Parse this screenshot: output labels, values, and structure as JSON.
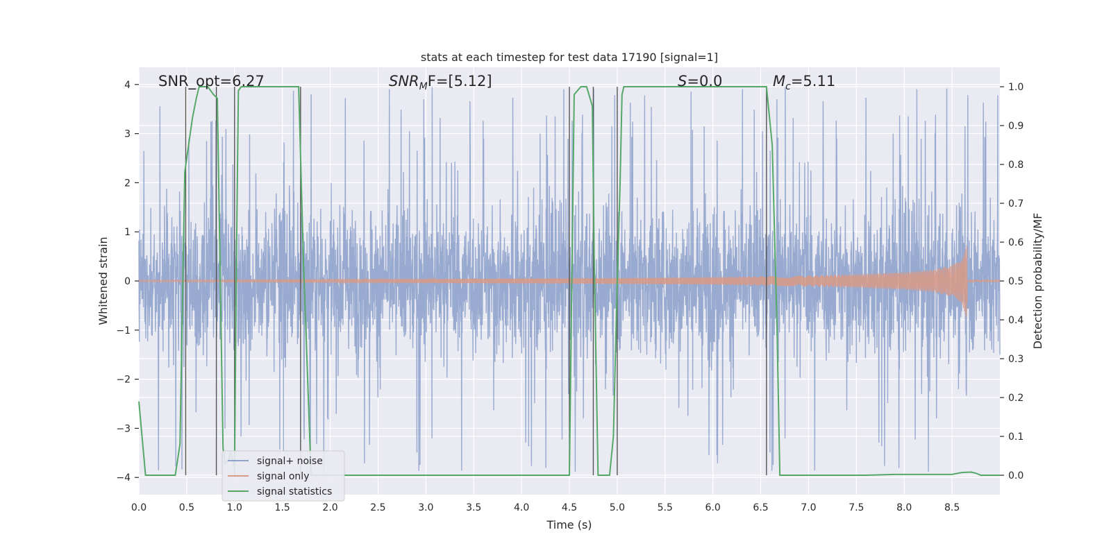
{
  "chart_data": {
    "type": "line",
    "title": "stats at each timestep for test data 17190 [signal=1]",
    "xlabel": "Time (s)",
    "ylabel": "Whitened strain",
    "y2label": "Detection probability/MF",
    "xlim": [
      0.0,
      9.0
    ],
    "ylim": [
      -4.35,
      4.35
    ],
    "y2lim": [
      -0.05,
      1.05
    ],
    "x_ticks": [
      "0.0",
      "0.5",
      "1.0",
      "1.5",
      "2.0",
      "2.5",
      "3.0",
      "3.5",
      "4.0",
      "4.5",
      "5.0",
      "5.5",
      "6.0",
      "6.5",
      "7.0",
      "7.5",
      "8.0",
      "8.5"
    ],
    "y_ticks": [
      "−4",
      "−3",
      "−2",
      "−1",
      "0",
      "1",
      "2",
      "3",
      "4"
    ],
    "y2_ticks": [
      "0.0",
      "0.1",
      "0.2",
      "0.3",
      "0.4",
      "0.5",
      "0.6",
      "0.7",
      "0.8",
      "0.9",
      "1.0"
    ],
    "grid": true,
    "legend_position": "lower-left",
    "annotations": [
      {
        "id": "snr-opt",
        "text": "SNR_opt=6.27"
      },
      {
        "id": "snr-mf",
        "text": "SNR",
        "sub": "M",
        "suffix": "F=[5.12]"
      },
      {
        "id": "s-stat",
        "text": "S",
        "suffix": "=0.0"
      },
      {
        "id": "mc",
        "text": "M",
        "sub": "c",
        "suffix": "=5.11"
      }
    ],
    "noise": {
      "name": "signal+ noise",
      "color": "#8fa3cc",
      "band_sigma": 1.45,
      "spike_max": 4.0,
      "note_values": "whitened strain fluctuates roughly within -4 to 4"
    },
    "signal_only": {
      "name": "signal only",
      "color": "#d99a86",
      "envelope": {
        "x": [
          0.0,
          2.0,
          4.0,
          5.0,
          6.0,
          7.0,
          7.5,
          8.0,
          8.3,
          8.5,
          8.6,
          8.66,
          8.67
        ],
        "y": [
          0.02,
          0.03,
          0.05,
          0.06,
          0.08,
          0.11,
          0.14,
          0.18,
          0.23,
          0.32,
          0.45,
          0.82,
          0.05
        ]
      }
    },
    "series": [
      {
        "name": "signal statistics",
        "color": "#55a868",
        "axis": "right",
        "x": [
          0.0,
          0.07,
          0.15,
          0.25,
          0.38,
          0.43,
          0.48,
          0.52,
          0.56,
          0.6,
          0.63,
          0.66,
          0.72,
          0.78,
          0.82,
          0.88,
          0.9,
          0.94,
          0.96,
          1.0,
          1.02,
          1.04,
          1.07,
          1.1,
          1.67,
          1.72,
          1.8,
          1.85,
          4.5,
          4.55,
          4.62,
          4.68,
          4.74,
          4.76,
          4.8,
          4.92,
          4.96,
          5.0,
          5.03,
          5.05,
          5.07,
          6.56,
          6.62,
          6.67,
          6.7,
          7.6,
          7.9,
          8.5,
          8.6,
          8.7,
          8.75,
          8.8,
          9.0
        ],
        "y": [
          0.19,
          0.0,
          -0.0,
          -0.0,
          -0.0,
          0.08,
          0.78,
          0.85,
          0.92,
          0.97,
          1.0,
          1.0,
          1.0,
          0.98,
          0.97,
          0.07,
          0.03,
          0.04,
          0.06,
          0.02,
          0.55,
          0.99,
          1.0,
          1.0,
          1.0,
          0.55,
          0.0,
          -0.0,
          -0.0,
          0.98,
          1.0,
          1.0,
          0.95,
          0.55,
          -0.0,
          -0.0,
          0.1,
          0.5,
          0.75,
          0.98,
          1.0,
          1.0,
          0.85,
          0.38,
          -0.0,
          -0.0,
          0.002,
          0.002,
          0.007,
          0.008,
          0.005,
          0.0,
          0.0
        ]
      }
    ],
    "vlines": [
      0.49,
      0.81,
      1.0,
      1.69,
      4.5,
      4.75,
      5.0,
      6.56
    ],
    "vline_color": "#555555",
    "legend": [
      "signal+ noise",
      "signal only",
      "signal statistics"
    ]
  }
}
